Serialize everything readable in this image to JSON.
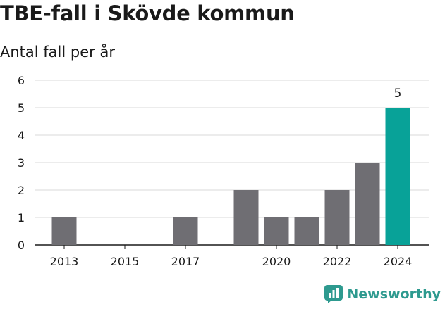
{
  "header": {
    "title": "TBE-fall i Skövde kommun",
    "subtitle": "Antal fall per år"
  },
  "brand": {
    "name": "Newsworthy",
    "icon": "newsworthy-logo-icon",
    "color": "#2e9a8f"
  },
  "colors": {
    "bar": "#6f6e73",
    "highlight": "#08a298",
    "grid": "#d9d9d9"
  },
  "chart_data": {
    "type": "bar",
    "title": "TBE-fall i Skövde kommun",
    "subtitle": "Antal fall per år",
    "categories": [
      "2013",
      "2014",
      "2015",
      "2016",
      "2017",
      "2018",
      "2019",
      "2020",
      "2021",
      "2022",
      "2023",
      "2024"
    ],
    "values": [
      1,
      0,
      0,
      0,
      1,
      0,
      2,
      1,
      1,
      2,
      3,
      5
    ],
    "highlight_category": "2024",
    "x_tick_labels": [
      "2013",
      "2015",
      "2017",
      "2020",
      "2022",
      "2024"
    ],
    "y_ticks": [
      0,
      1,
      2,
      3,
      4,
      5,
      6
    ],
    "ylim": [
      0,
      6
    ],
    "data_labels": [
      {
        "category": "2024",
        "text": "5"
      }
    ],
    "grid": true,
    "xlabel": "",
    "ylabel": ""
  }
}
